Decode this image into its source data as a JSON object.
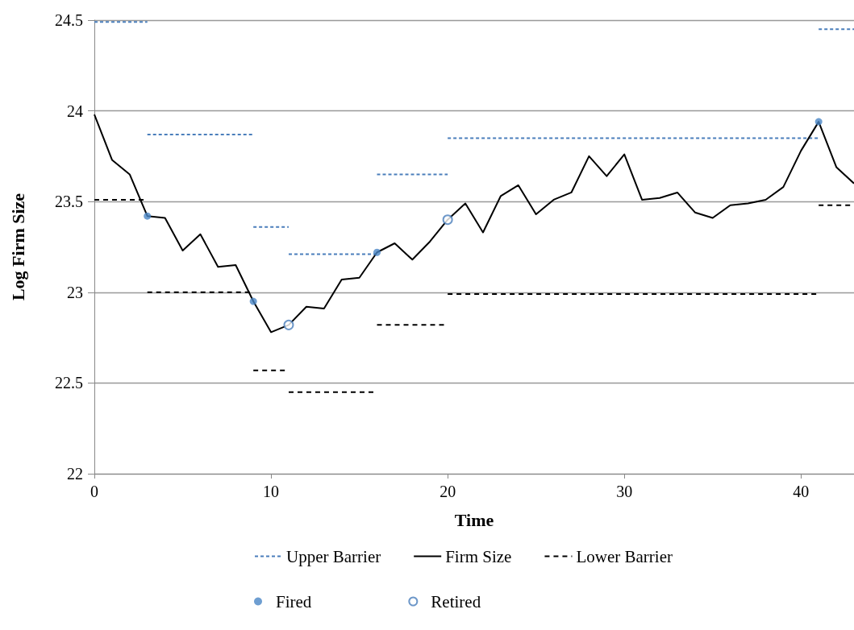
{
  "chart_data": {
    "type": "line",
    "xlabel": "Time",
    "ylabel": "Log Firm Size",
    "xlim": [
      0,
      43
    ],
    "xticks": [
      0,
      10,
      20,
      30,
      40
    ],
    "ylim": [
      22,
      24.5
    ],
    "yticks": [
      22,
      22.5,
      23,
      23.5,
      24,
      24.5
    ],
    "grid": "y",
    "legend": "bottom",
    "series": [
      {
        "name": "Upper Barrier",
        "color": "#4a7ebb",
        "line_style": "dashed",
        "marker": "none",
        "x": [
          0,
          3,
          null,
          3,
          9,
          null,
          9,
          11,
          null,
          11,
          16,
          null,
          16,
          20,
          null,
          20,
          41,
          null,
          41,
          43
        ],
        "values": [
          24.49,
          24.49,
          null,
          23.87,
          23.87,
          null,
          23.36,
          23.36,
          null,
          23.21,
          23.21,
          null,
          23.65,
          23.65,
          null,
          23.85,
          23.85,
          null,
          24.45,
          24.45
        ]
      },
      {
        "name": "Firm Size",
        "color": "#000000",
        "line_style": "solid",
        "marker": "none",
        "x": [
          0,
          1,
          2,
          3,
          4,
          5,
          6,
          7,
          8,
          9,
          10,
          11,
          12,
          13,
          14,
          15,
          16,
          17,
          18,
          19,
          20,
          21,
          22,
          23,
          24,
          25,
          26,
          27,
          28,
          29,
          30,
          31,
          32,
          33,
          34,
          35,
          36,
          37,
          38,
          39,
          40,
          41,
          42,
          43
        ],
        "values": [
          23.98,
          23.73,
          23.65,
          23.42,
          23.41,
          23.23,
          23.32,
          23.14,
          23.15,
          22.95,
          22.78,
          22.82,
          22.92,
          22.91,
          23.07,
          23.08,
          23.22,
          23.27,
          23.18,
          23.28,
          23.4,
          23.49,
          23.33,
          23.53,
          23.59,
          23.43,
          23.51,
          23.55,
          23.75,
          23.64,
          23.76,
          23.51,
          23.52,
          23.55,
          23.44,
          23.41,
          23.48,
          23.49,
          23.51,
          23.58,
          23.78,
          23.94,
          23.69,
          23.6
        ]
      },
      {
        "name": "Lower Barrier",
        "color": "#000000",
        "line_style": "dashed",
        "marker": "none",
        "x": [
          0,
          3,
          null,
          3,
          9,
          null,
          9,
          11,
          null,
          11,
          16,
          null,
          16,
          20,
          null,
          20,
          41,
          null,
          41,
          43
        ],
        "values": [
          23.51,
          23.51,
          null,
          23.0,
          23.0,
          null,
          22.57,
          22.57,
          null,
          22.45,
          22.45,
          null,
          22.82,
          22.82,
          null,
          22.99,
          22.99,
          null,
          23.48,
          23.48
        ]
      },
      {
        "name": "Fired",
        "type": "scatter",
        "color": "#4a86c5",
        "marker": "circle",
        "x": [
          3,
          9,
          16,
          41
        ],
        "values": [
          23.42,
          22.95,
          23.22,
          23.94
        ]
      },
      {
        "name": "Retired",
        "type": "scatter",
        "color": "#4a7ebb",
        "marker": "circle",
        "x": [
          11,
          20
        ],
        "values": [
          22.82,
          23.4
        ]
      }
    ]
  }
}
